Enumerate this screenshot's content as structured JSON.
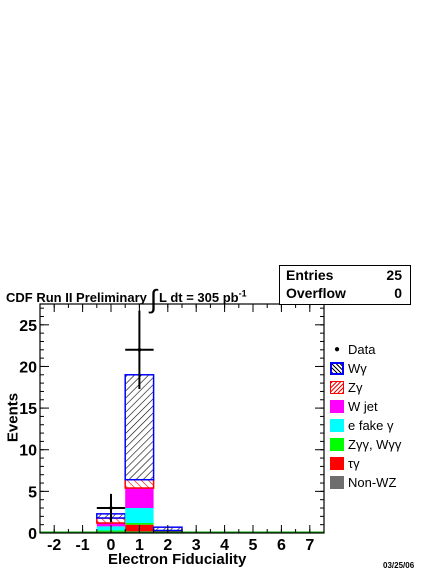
{
  "header": {
    "title_text": "CDF Run II Preliminary",
    "integral_symbol": "∫",
    "lumi_text": "L dt = 305 pb",
    "lumi_exp": "-1"
  },
  "stats": {
    "entries_label": "Entries",
    "entries_value": "25",
    "overflow_label": "Overflow",
    "overflow_value": "0"
  },
  "date_stamp": "03/25/06",
  "chart_data": {
    "type": "bar",
    "stacked": true,
    "xlabel": "Electron Fiduciality",
    "ylabel": "Events",
    "xlim": [
      -2.5,
      7.5
    ],
    "ylim": [
      0,
      27.5
    ],
    "x_ticks": [
      -2,
      -1,
      0,
      1,
      2,
      3,
      4,
      5,
      6,
      7
    ],
    "y_ticks": [
      0,
      5,
      10,
      15,
      20,
      25
    ],
    "bin_width": 1,
    "bin_centers": [
      0,
      1,
      2
    ],
    "series": [
      {
        "name": "Non-WZ",
        "color": "#6e6e6e",
        "values": [
          0.1,
          0.2,
          0.0
        ]
      },
      {
        "name": "τγ",
        "color": "#ff0000",
        "values": [
          0.1,
          0.8,
          0.0
        ]
      },
      {
        "name": "Zγγ, Wγγ",
        "color": "#00ff00",
        "values": [
          0.1,
          0.2,
          0.0
        ]
      },
      {
        "name": "e fake γ",
        "color": "#00ffff",
        "values": [
          0.5,
          1.8,
          0.1
        ]
      },
      {
        "name": "W jet",
        "color": "#ff00ff",
        "values": [
          0.4,
          2.4,
          0.1
        ]
      },
      {
        "name": "Zγ",
        "color": "#ff0000",
        "values": [
          0.6,
          1.0,
          0.1
        ]
      },
      {
        "name": "Wγ",
        "color": "#0000ff",
        "values": [
          0.5,
          12.6,
          0.4
        ]
      }
    ],
    "data_points": {
      "name": "Data",
      "x": [
        0,
        1
      ],
      "y": [
        3,
        22
      ],
      "yerr": [
        1.7,
        4.7
      ]
    },
    "legend_position": "right"
  }
}
